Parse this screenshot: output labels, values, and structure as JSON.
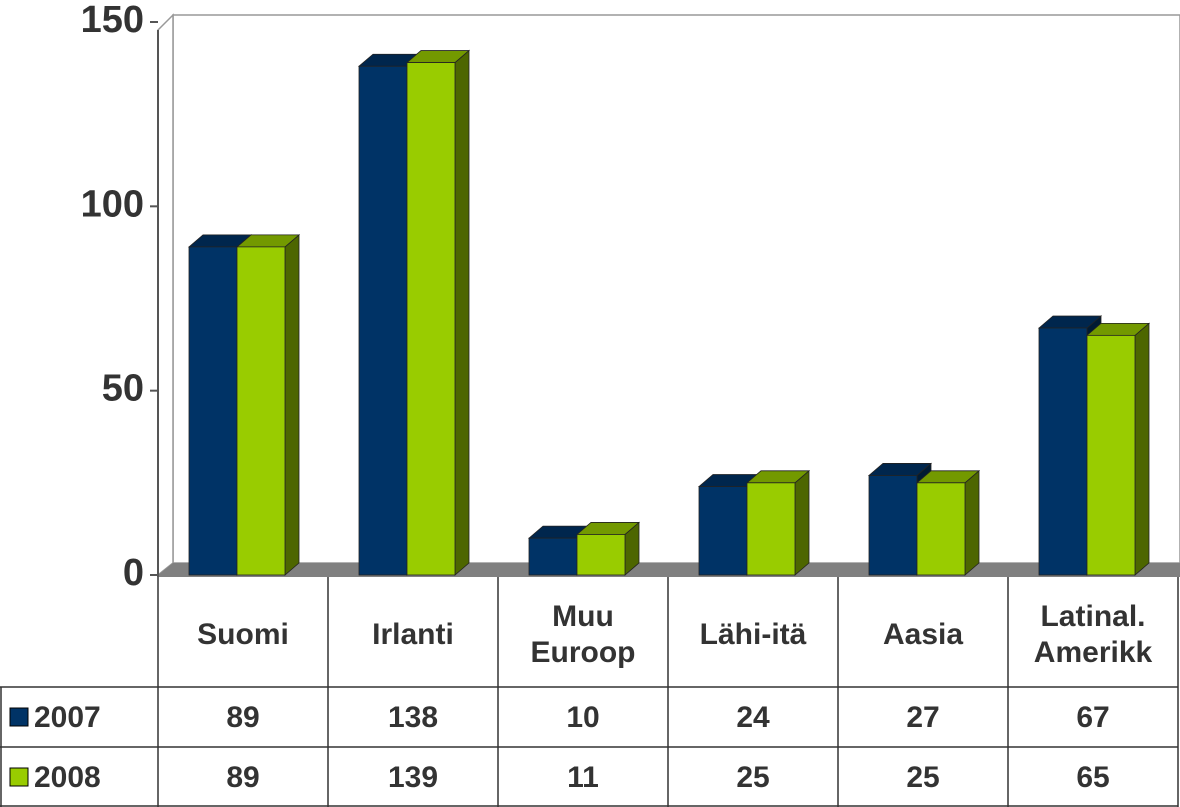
{
  "chart_data": {
    "type": "bar3d",
    "categories": [
      "Suomi",
      "Irlanti",
      "Muu\nEuroop",
      "Lähi-itä",
      "Aasia",
      "Latinal.\nAmerikk"
    ],
    "series": [
      {
        "name": "2007",
        "color": "#003366",
        "values": [
          89,
          138,
          10,
          24,
          27,
          67
        ]
      },
      {
        "name": "2008",
        "color": "#99cc00",
        "values": [
          89,
          139,
          11,
          25,
          25,
          65
        ]
      }
    ],
    "ylim": [
      0,
      150
    ],
    "yticks": [
      0,
      50,
      100,
      150
    ],
    "data_table": true
  }
}
